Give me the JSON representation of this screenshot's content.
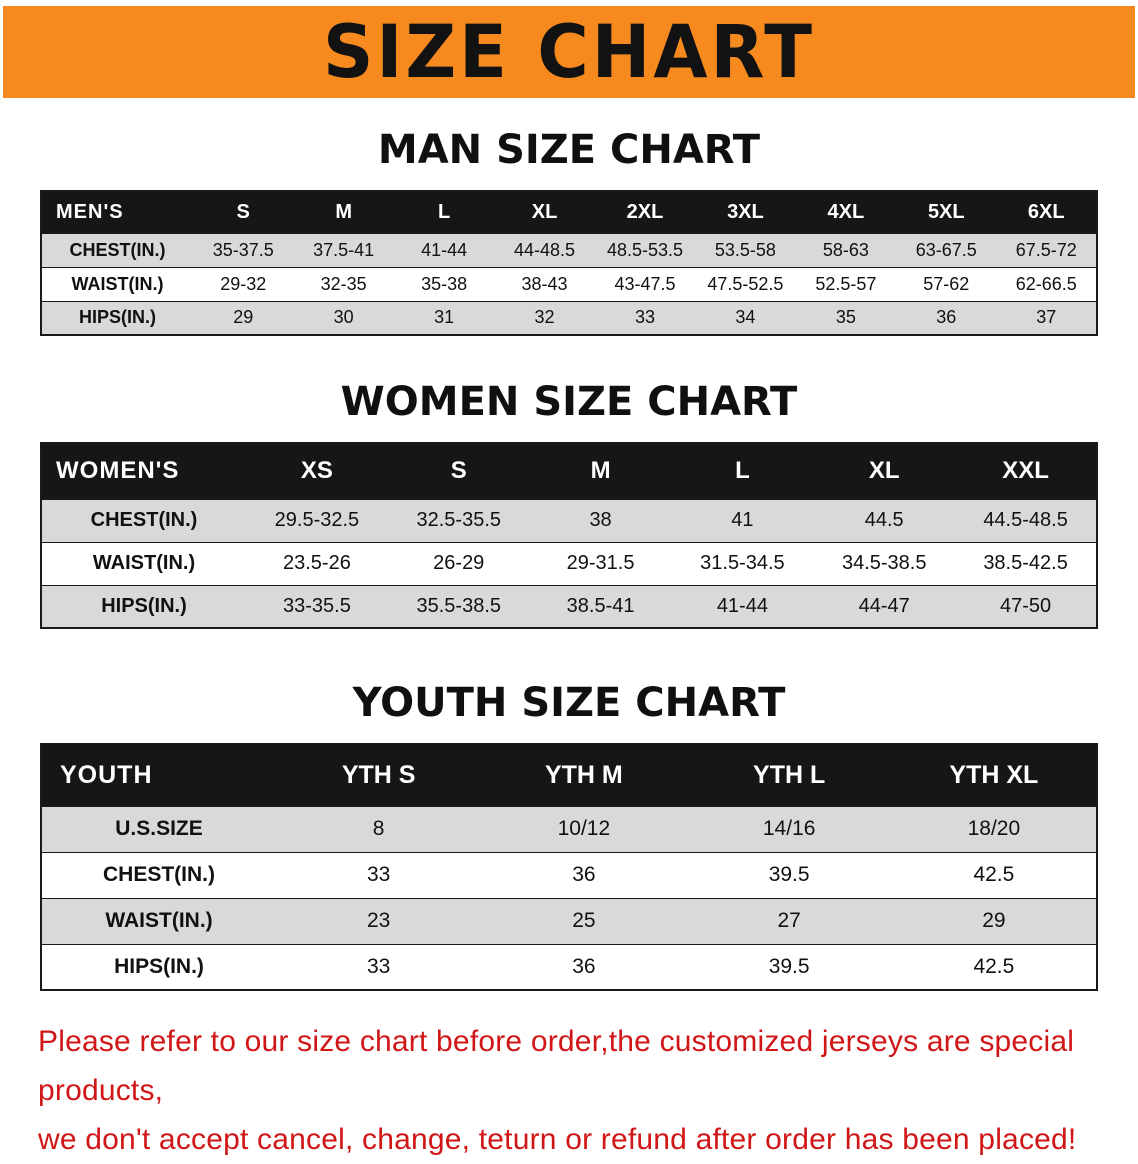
{
  "banner": {
    "title": "SIZE CHART"
  },
  "men": {
    "section_title": "MAN SIZE CHART",
    "header_label": "MEN'S",
    "columns": [
      "S",
      "M",
      "L",
      "XL",
      "2XL",
      "3XL",
      "4XL",
      "5XL",
      "6XL"
    ],
    "rows": [
      {
        "label": "CHEST(IN.)",
        "values": [
          "35-37.5",
          "37.5-41",
          "41-44",
          "44-48.5",
          "48.5-53.5",
          "53.5-58",
          "58-63",
          "63-67.5",
          "67.5-72"
        ]
      },
      {
        "label": "WAIST(IN.)",
        "values": [
          "29-32",
          "32-35",
          "35-38",
          "38-43",
          "43-47.5",
          "47.5-52.5",
          "52.5-57",
          "57-62",
          "62-66.5"
        ]
      },
      {
        "label": "HIPS(IN.)",
        "values": [
          "29",
          "30",
          "31",
          "32",
          "33",
          "34",
          "35",
          "36",
          "37"
        ]
      }
    ]
  },
  "women": {
    "section_title": "WOMEN SIZE CHART",
    "header_label": "WOMEN'S",
    "columns": [
      "XS",
      "S",
      "M",
      "L",
      "XL",
      "XXL"
    ],
    "rows": [
      {
        "label": "CHEST(IN.)",
        "values": [
          "29.5-32.5",
          "32.5-35.5",
          "38",
          "41",
          "44.5",
          "44.5-48.5"
        ]
      },
      {
        "label": "WAIST(IN.)",
        "values": [
          "23.5-26",
          "26-29",
          "29-31.5",
          "31.5-34.5",
          "34.5-38.5",
          "38.5-42.5"
        ]
      },
      {
        "label": "HIPS(IN.)",
        "values": [
          "33-35.5",
          "35.5-38.5",
          "38.5-41",
          "41-44",
          "44-47",
          "47-50"
        ]
      }
    ]
  },
  "youth": {
    "section_title": "YOUTH SIZE CHART",
    "header_label": "YOUTH",
    "columns": [
      "YTH S",
      "YTH M",
      "YTH L",
      "YTH XL"
    ],
    "rows": [
      {
        "label": "U.S.SIZE",
        "values": [
          "8",
          "10/12",
          "14/16",
          "18/20"
        ]
      },
      {
        "label": "CHEST(IN.)",
        "values": [
          "33",
          "36",
          "39.5",
          "42.5"
        ]
      },
      {
        "label": "WAIST(IN.)",
        "values": [
          "23",
          "25",
          "27",
          "29"
        ]
      },
      {
        "label": "HIPS(IN.)",
        "values": [
          "33",
          "36",
          "39.5",
          "42.5"
        ]
      }
    ]
  },
  "footer": {
    "line1": "Please refer to our size chart before order,the customized jerseys are special products,",
    "line2": "we don't accept cancel, change, teturn or refund after order has been placed!"
  },
  "colors": {
    "banner_bg": "#f68a1e",
    "banner_text": "#121212",
    "table_header_bg": "#161616",
    "table_header_text": "#ffffff",
    "row_alt_bg": "#d9d9d9",
    "border": "#1a1a1a",
    "footer_text": "#d01616"
  }
}
